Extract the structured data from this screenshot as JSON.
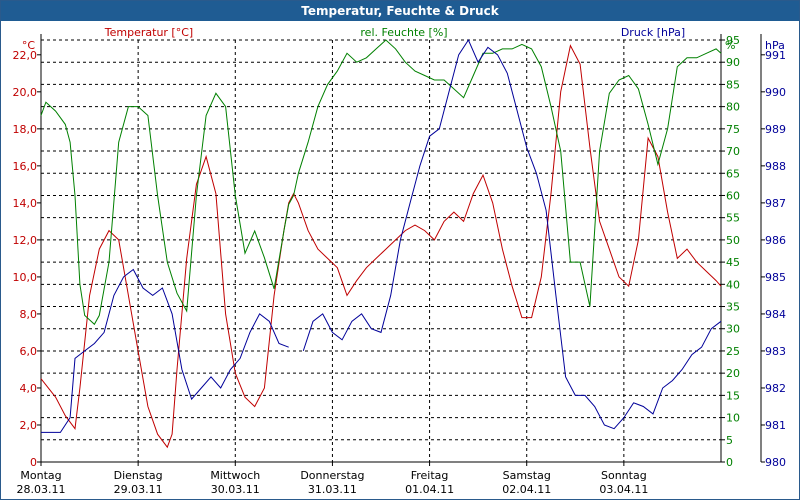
{
  "window": {
    "title": "Temperatur, Feuchte & Druck"
  },
  "colors": {
    "temperature": "#c00000",
    "humidity": "#008000",
    "pressure": "#000099",
    "titlebar": "#1f5c93"
  },
  "chart_data": {
    "type": "line",
    "title": "Temperatur, Feuchte & Druck",
    "grid": true,
    "x_days": [
      {
        "day": "Montag",
        "date": "28.03.11"
      },
      {
        "day": "Dienstag",
        "date": "29.03.11"
      },
      {
        "day": "Mittwoch",
        "date": "30.03.11"
      },
      {
        "day": "Donnerstag",
        "date": "31.03.11"
      },
      {
        "day": "Freitag",
        "date": "01.04.11"
      },
      {
        "day": "Samstag",
        "date": "02.04.11"
      },
      {
        "day": "Sonntag",
        "date": "03.04.11"
      }
    ],
    "axes": {
      "temperature": {
        "label": "Temperatur [°C]",
        "unit": "°C",
        "ylim": [
          0,
          22.8
        ],
        "ticks": [
          "0",
          "2,0",
          "4,0",
          "6,0",
          "8,0",
          "10,0",
          "12,0",
          "14,0",
          "16,0",
          "18,0",
          "20,0",
          "22,0"
        ]
      },
      "humidity": {
        "label": "rel. Feuchte [%]",
        "unit": "%",
        "ylim": [
          0,
          95
        ],
        "ticks": [
          "0",
          "5",
          "10",
          "15",
          "20",
          "25",
          "30",
          "35",
          "40",
          "45",
          "50",
          "55",
          "60",
          "65",
          "70",
          "75",
          "80",
          "85",
          "90",
          "95"
        ]
      },
      "pressure": {
        "label": "Druck [hPa]",
        "unit": "hPa",
        "ylim": [
          980,
          991.4
        ],
        "ticks": [
          "980",
          "981",
          "982",
          "983",
          "984",
          "985",
          "986",
          "987",
          "988",
          "989",
          "990",
          "991"
        ]
      }
    },
    "series": [
      {
        "name": "Temperatur [°C]",
        "axis": "temperature",
        "x": [
          0,
          0.15,
          0.25,
          0.35,
          0.4,
          0.5,
          0.6,
          0.7,
          0.8,
          0.9,
          1.0,
          1.1,
          1.2,
          1.3,
          1.35,
          1.4,
          1.5,
          1.6,
          1.7,
          1.8,
          1.9,
          2.0,
          2.1,
          2.2,
          2.3,
          2.4,
          2.5,
          2.55,
          2.6,
          2.65,
          2.75,
          2.85,
          2.95,
          3.05,
          3.15,
          3.25,
          3.35,
          3.45,
          3.55,
          3.65,
          3.75,
          3.85,
          3.95,
          4.05,
          4.15,
          4.25,
          4.35,
          4.45,
          4.55,
          4.65,
          4.75,
          4.85,
          4.95,
          5.05,
          5.15,
          5.25,
          5.35,
          5.45,
          5.55,
          5.65,
          5.75,
          5.85,
          5.95,
          6.05,
          6.15,
          6.25,
          6.35,
          6.45,
          6.55,
          6.65,
          6.75,
          6.85,
          6.95,
          7.0
        ],
        "values": [
          4.5,
          3.5,
          2.5,
          1.8,
          4.0,
          9.0,
          11.5,
          12.5,
          12.0,
          9.0,
          6.0,
          3.0,
          1.5,
          0.8,
          1.5,
          5.0,
          11.0,
          15.0,
          16.5,
          14.5,
          8.0,
          4.8,
          3.5,
          3.0,
          4.0,
          9.0,
          12.5,
          14.0,
          14.5,
          14.0,
          12.5,
          11.5,
          11.0,
          10.5,
          9.0,
          9.8,
          10.5,
          11.0,
          11.5,
          12.0,
          12.5,
          12.8,
          12.5,
          12.0,
          13.0,
          13.5,
          13.0,
          14.5,
          15.5,
          14.0,
          11.5,
          9.5,
          7.8,
          7.8,
          10.0,
          14.5,
          20.0,
          22.5,
          21.5,
          17.0,
          13.0,
          11.5,
          10.0,
          9.5,
          12.0,
          17.5,
          16.5,
          13.5,
          11.0,
          11.5,
          10.8,
          10.3,
          9.8,
          9.5
        ]
      },
      {
        "name": "rel. Feuchte [%]",
        "axis": "humidity",
        "x": [
          0,
          0.05,
          0.15,
          0.25,
          0.3,
          0.35,
          0.4,
          0.45,
          0.5,
          0.55,
          0.6,
          0.7,
          0.8,
          0.9,
          1.0,
          1.1,
          1.2,
          1.3,
          1.4,
          1.5,
          1.6,
          1.7,
          1.8,
          1.9,
          2.0,
          2.1,
          2.2,
          2.3,
          2.4,
          2.5,
          2.55,
          2.6,
          2.65,
          2.75,
          2.85,
          2.95,
          3.05,
          3.15,
          3.25,
          3.35,
          3.45,
          3.55,
          3.65,
          3.75,
          3.85,
          3.95,
          4.05,
          4.15,
          4.25,
          4.35,
          4.45,
          4.55,
          4.65,
          4.75,
          4.85,
          4.95,
          5.05,
          5.15,
          5.25,
          5.35,
          5.45,
          5.55,
          5.65,
          5.75,
          5.85,
          5.95,
          6.05,
          6.15,
          6.25,
          6.35,
          6.45,
          6.55,
          6.65,
          6.75,
          6.85,
          6.95,
          7.0
        ],
        "values": [
          78,
          81,
          79,
          76,
          72,
          60,
          40,
          33,
          32,
          31,
          33,
          45,
          72,
          80,
          80,
          78,
          60,
          45,
          38,
          34,
          60,
          78,
          83,
          80,
          60,
          47,
          52,
          46,
          39,
          52,
          58,
          60,
          65,
          72,
          80,
          85,
          88,
          92,
          90,
          91,
          93,
          95,
          93,
          90,
          88,
          87,
          86,
          86,
          84,
          82,
          87,
          92,
          92,
          93,
          93,
          94,
          93,
          89,
          80,
          70,
          45,
          45,
          35,
          70,
          83,
          86,
          87,
          84,
          76,
          67,
          75,
          89,
          91,
          91,
          92,
          93,
          92
        ]
      },
      {
        "name": "Druck [hPa]",
        "axis": "pressure",
        "x": [
          0,
          0.1,
          0.2,
          0.3,
          0.35,
          0.45,
          0.55,
          0.65,
          0.75,
          0.85,
          0.95,
          1.05,
          1.15,
          1.25,
          1.35,
          1.45,
          1.55,
          1.65,
          1.75,
          1.85,
          1.95,
          2.05,
          2.15,
          2.25,
          2.35,
          2.45,
          2.55
        ],
        "values": [
          980.8,
          980.8,
          980.8,
          981.2,
          982.8,
          983.0,
          983.2,
          983.5,
          984.5,
          985.0,
          985.2,
          984.7,
          984.5,
          984.7,
          984.0,
          982.5,
          981.7,
          982.0,
          982.3,
          982.0,
          982.5,
          982.8,
          983.5,
          984.0,
          983.8,
          983.2,
          983.1
        ],
        "x2": [
          2.7,
          2.8,
          2.9,
          3.0,
          3.1,
          3.2,
          3.3,
          3.4,
          3.5,
          3.6,
          3.7,
          3.8,
          3.9,
          4.0,
          4.1,
          4.2,
          4.3,
          4.4,
          4.5,
          4.6,
          4.7,
          4.8,
          4.9,
          5.0,
          5.1,
          5.2,
          5.3,
          5.4,
          5.5,
          5.6,
          5.7,
          5.8,
          5.9,
          6.0,
          6.1,
          6.2,
          6.3,
          6.4,
          6.5,
          6.6,
          6.7,
          6.8,
          6.9,
          7.0
        ],
        "values2": [
          983.0,
          983.8,
          984.0,
          983.5,
          983.3,
          983.8,
          984.0,
          983.6,
          983.5,
          984.5,
          986.0,
          987.0,
          988.0,
          988.8,
          989.0,
          990.0,
          991.0,
          991.4,
          990.8,
          991.2,
          991.0,
          990.5,
          989.5,
          988.5,
          987.8,
          986.8,
          984.5,
          982.3,
          981.8,
          981.8,
          981.5,
          981.0,
          980.9,
          981.2,
          981.6,
          981.5,
          981.3,
          982.0,
          982.2,
          982.5,
          982.9,
          983.1,
          983.6,
          983.8
        ]
      }
    ]
  }
}
